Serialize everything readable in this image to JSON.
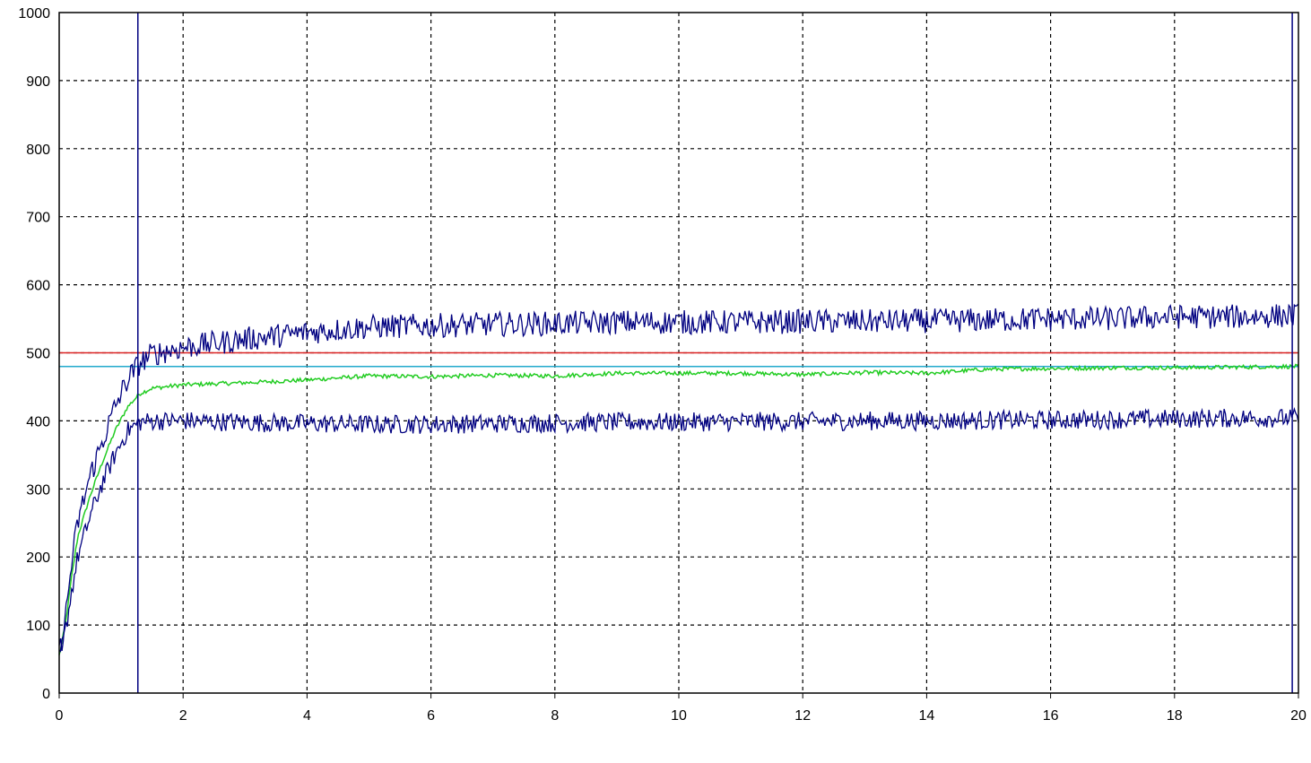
{
  "chart_data": {
    "type": "line",
    "title": "",
    "xlabel": "",
    "ylabel": "",
    "xlim": [
      0,
      20
    ],
    "ylim": [
      0,
      1000
    ],
    "grid": true,
    "grid_style": "dashed",
    "x_ticks": [
      "0",
      "2",
      "4",
      "6",
      "8",
      "10",
      "12",
      "14",
      "16",
      "18",
      "20"
    ],
    "y_ticks": [
      "0",
      "100",
      "200",
      "300",
      "400",
      "500",
      "600",
      "700",
      "800",
      "900",
      "1000"
    ],
    "series": [
      {
        "color": "#000080",
        "description_role": "upper noisy band",
        "x": [
          0,
          0.1,
          0.2,
          0.3,
          0.5,
          0.7,
          0.9,
          1.1,
          1.3,
          1.5,
          2,
          3,
          4,
          5,
          6,
          7,
          8,
          9,
          10,
          11,
          12,
          13,
          14,
          15,
          16,
          17,
          18,
          19,
          20
        ],
        "y": [
          55,
          110,
          190,
          250,
          320,
          370,
          420,
          460,
          485,
          498,
          508,
          520,
          530,
          538,
          540,
          542,
          543,
          545,
          545,
          545,
          546,
          546,
          547,
          548,
          550,
          550,
          553,
          553,
          555
        ],
        "noise": 18
      },
      {
        "color": "#000080",
        "description_role": "lower noisy band",
        "x": [
          0,
          0.1,
          0.2,
          0.3,
          0.5,
          0.7,
          0.9,
          1.1,
          1.3,
          1.5,
          2,
          3,
          4,
          5,
          6,
          7,
          8,
          9,
          10,
          11,
          12,
          13,
          14,
          15,
          16,
          17,
          18,
          19,
          20
        ],
        "y": [
          50,
          90,
          150,
          200,
          260,
          310,
          350,
          385,
          398,
          400,
          400,
          398,
          396,
          395,
          395,
          396,
          397,
          398,
          398,
          399,
          399,
          400,
          400,
          401,
          401,
          402,
          403,
          404,
          404
        ],
        "noise": 14
      },
      {
        "color": "#22cc22",
        "description_role": "smoothed mean",
        "x": [
          0,
          0.1,
          0.2,
          0.3,
          0.5,
          0.7,
          0.9,
          1.1,
          1.3,
          1.5,
          2,
          3,
          4,
          5,
          6,
          7,
          8,
          9,
          10,
          11,
          12,
          13,
          14,
          15,
          16,
          17,
          18,
          19,
          20
        ],
        "y": [
          55,
          100,
          170,
          230,
          290,
          340,
          385,
          420,
          440,
          448,
          453,
          456,
          460,
          466,
          465,
          467,
          466,
          470,
          470,
          470,
          468,
          471,
          470,
          476,
          477,
          478,
          478,
          479,
          480
        ],
        "noise": 3
      },
      {
        "color": "#dd2222",
        "description_role": "setpoint",
        "x": [
          0,
          20
        ],
        "y": [
          500,
          500
        ],
        "noise": 0
      },
      {
        "color": "#22aacc",
        "description_role": "reference",
        "x": [
          0,
          20
        ],
        "y": [
          480,
          480
        ],
        "noise": 0
      }
    ],
    "vertical_markers": [
      {
        "x": 1.27,
        "color": "#000080"
      },
      {
        "x": 19.9,
        "color": "#000080"
      }
    ]
  }
}
